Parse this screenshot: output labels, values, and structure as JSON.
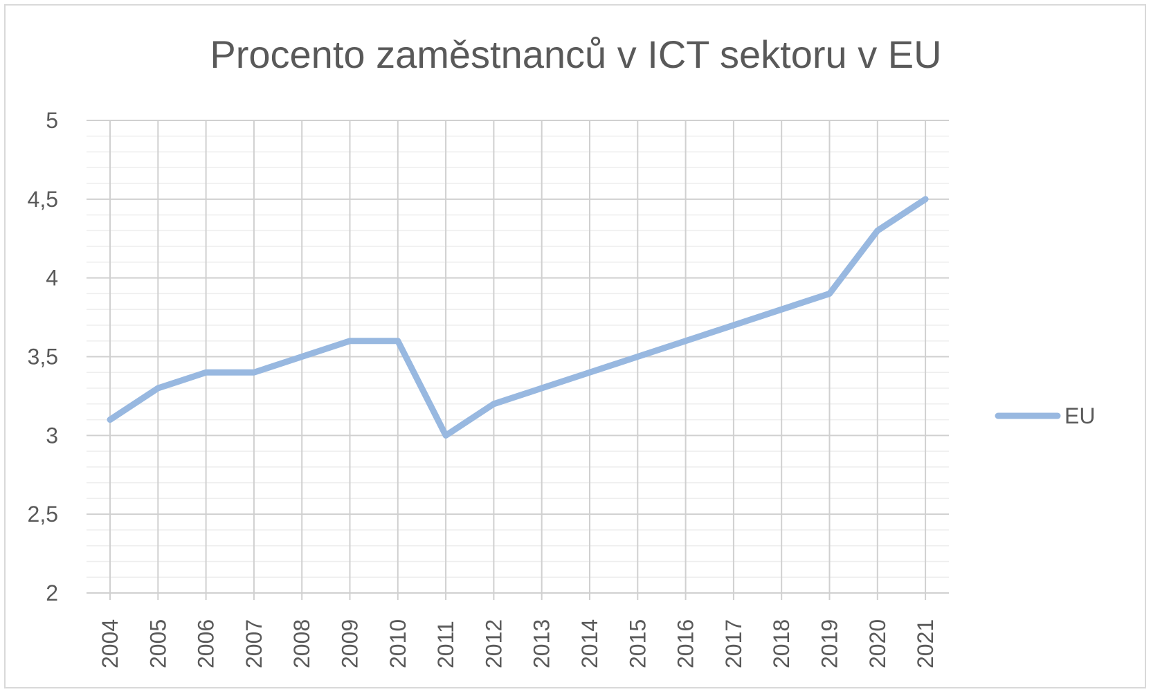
{
  "chart_data": {
    "type": "line",
    "title": "Procento zaměstnanců v ICT sektoru v EU",
    "categories": [
      "2004",
      "2005",
      "2006",
      "2007",
      "2008",
      "2009",
      "2010",
      "2011",
      "2012",
      "2013",
      "2014",
      "2015",
      "2016",
      "2017",
      "2018",
      "2019",
      "2020",
      "2021"
    ],
    "series": [
      {
        "name": "EU",
        "values": [
          3.1,
          3.3,
          3.4,
          3.4,
          3.5,
          3.6,
          3.6,
          3.0,
          3.2,
          3.3,
          3.4,
          3.5,
          3.6,
          3.7,
          3.8,
          3.9,
          4.3,
          4.5
        ]
      }
    ],
    "y_ticks": [
      2,
      2.5,
      3,
      3.5,
      4,
      4.5,
      5
    ],
    "y_tick_labels": [
      "2",
      "2,5",
      "3",
      "3,5",
      "4",
      "4,5",
      "5"
    ],
    "ylim": [
      2,
      5
    ],
    "grid": true,
    "legend_position": "right",
    "colors": {
      "series": "#98b8e0",
      "grid_major": "#d0d0d0",
      "grid_minor": "#eeeeee",
      "text": "#595959"
    }
  }
}
